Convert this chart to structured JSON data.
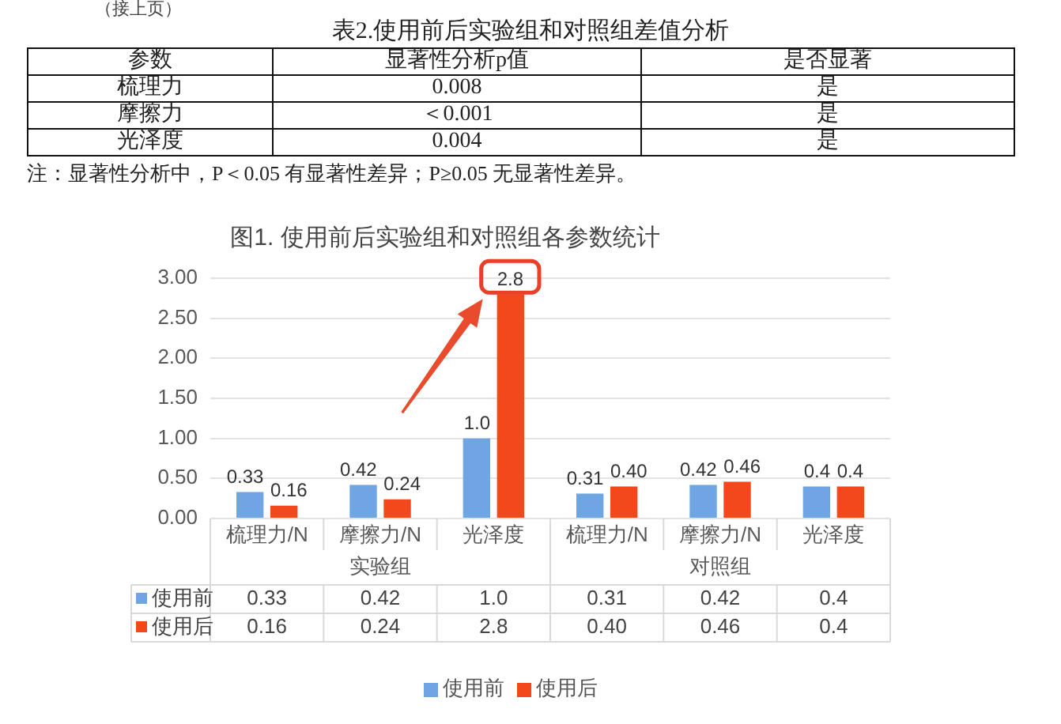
{
  "chart_data": [
    {
      "type": "other",
      "title": "表2.使用前后实验组和对照组差值分析",
      "categories": [
        "参数",
        "显著性分析p值",
        "是否显著"
      ],
      "annotations": [
        "（接上页）",
        "梳理力",
        "0.008",
        "是",
        "摩擦力",
        "＜0.001",
        "是",
        "光泽度",
        "0.004",
        "是",
        "注：显著性分析中，P＜0.05 有显著性差异；P≥0.05 无显著性差异。"
      ]
    },
    {
      "type": "bar",
      "title": "图1. 使用前后实验组和对照组各参数统计",
      "categories": [
        "梳理力/N",
        "摩擦力/N",
        "光泽度",
        "梳理力/N",
        "摩擦力/N",
        "光泽度"
      ],
      "annotations": [
        "实验组",
        "对照组"
      ],
      "series": [
        {
          "name": "使用前",
          "color": "#6fa5e3",
          "values": [
            0.33,
            0.42,
            1.0,
            0.31,
            0.42,
            0.4
          ],
          "value_labels": [
            "0.33",
            "0.42",
            "1.0",
            "0.31",
            "0.42",
            "0.4"
          ]
        },
        {
          "name": "使用后",
          "color": "#f2481b",
          "values": [
            0.16,
            0.24,
            2.8,
            0.4,
            0.46,
            0.4
          ],
          "value_labels": [
            "0.16",
            "0.24",
            "2.8",
            "0.40",
            "0.46",
            "0.4"
          ]
        }
      ],
      "ylim": [
        0,
        3
      ],
      "yticks": [
        {
          "value": 0,
          "label": "0.00"
        },
        {
          "value": 0.5,
          "label": "0.50"
        },
        {
          "value": 1,
          "label": "1.00"
        },
        {
          "value": 1.5,
          "label": "1.50"
        },
        {
          "value": 2,
          "label": "2.00"
        },
        {
          "value": 2.5,
          "label": "2.50"
        },
        {
          "value": 3,
          "label": "3.00"
        }
      ],
      "grid": "y",
      "legend": "bottom"
    }
  ]
}
